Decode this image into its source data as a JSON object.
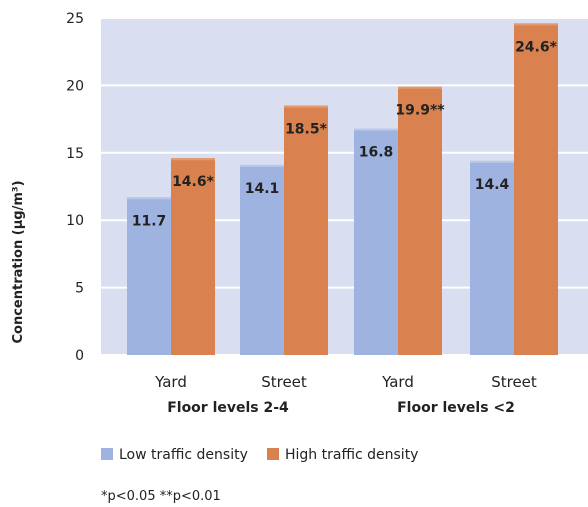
{
  "chart_data": {
    "type": "bar",
    "ylabel": "Concentration (µg/m³)",
    "ylim": [
      0,
      25
    ],
    "yticks": [
      0,
      5,
      10,
      15,
      20,
      25
    ],
    "grid": true,
    "categories": [
      "Yard",
      "Street",
      "Yard",
      "Street"
    ],
    "groups": [
      "Floor levels 2-4",
      "Floor levels <2"
    ],
    "series": [
      {
        "name": "Low traffic density",
        "color": "#9fb3e0",
        "values": [
          11.7,
          14.1,
          16.8,
          14.4
        ],
        "labels": [
          "11.7",
          "14.1",
          "16.8",
          "14.4"
        ]
      },
      {
        "name": "High traffic density",
        "color": "#d9824f",
        "values": [
          14.6,
          18.5,
          19.9,
          24.6
        ],
        "labels": [
          "14.6*",
          "18.5*",
          "19.9**",
          "24.6*"
        ]
      }
    ],
    "legend_position": "bottom",
    "plot_background": "#d9dff1",
    "gridline_color": "#ffffff"
  },
  "footnote": "*p<0.05 **p<0.01"
}
